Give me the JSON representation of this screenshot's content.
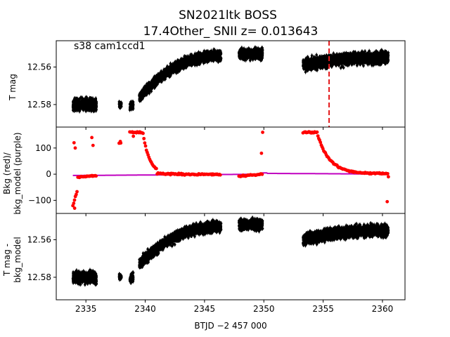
{
  "figure": {
    "title_line1": "SN2021ltk  BOSS",
    "title_line2": "17.4Other_ SNII z= 0.013643",
    "annotation": "s38 cam1ccd1"
  },
  "chart_data": [
    {
      "type": "scatter",
      "panel": "top",
      "ylabel": "T mag",
      "y_inverted": true,
      "ylim": [
        12.592,
        12.546
      ],
      "yticks": [
        12.56,
        12.58
      ],
      "ytick_labels": [
        "12.56",
        "12.58"
      ],
      "xlim": [
        2332.5,
        2361.9
      ],
      "marker_color": "#000000",
      "vline": {
        "x": 2355.5,
        "color": "#e41a1c",
        "style": "dashed"
      },
      "segments": [
        {
          "x": [
            2333.9,
            2335.9
          ],
          "y_start": 12.58,
          "y_end": 12.58,
          "scatter": 0.0045
        },
        {
          "x": [
            2337.8,
            2338.0
          ],
          "y_start": 12.58,
          "y_end": 12.58,
          "scatter": 0.002
        },
        {
          "x": [
            2338.7,
            2339.0
          ],
          "y_start": 12.581,
          "y_end": 12.58,
          "scatter": 0.003
        },
        {
          "x": [
            2339.5,
            2346.4
          ],
          "y_start": 12.576,
          "y_end": 12.554,
          "scatter": 0.004
        },
        {
          "x": [
            2347.9,
            2349.9
          ],
          "y_start": 12.553,
          "y_end": 12.553,
          "scatter": 0.004
        },
        {
          "x": [
            2353.3,
            2360.5
          ],
          "y_start": 12.559,
          "y_end": 12.555,
          "scatter": 0.0045
        }
      ]
    },
    {
      "type": "scatter",
      "panel": "middle",
      "ylabel": "Bkg (red)/ bkg_model (purple)",
      "ylim": [
        -150,
        180
      ],
      "yticks": [
        100,
        0,
        -100
      ],
      "ytick_labels": [
        "100",
        "0",
        "−100"
      ],
      "xlim": [
        2332.5,
        2361.9
      ],
      "series": [
        {
          "name": "Bkg",
          "color": "#ff0000"
        },
        {
          "name": "bkg_model",
          "color": "#c000c0"
        }
      ]
    },
    {
      "type": "scatter",
      "panel": "bottom",
      "ylabel": "T mag - bkg_model",
      "y_inverted": true,
      "ylim": [
        12.592,
        12.546
      ],
      "yticks": [
        12.56,
        12.58
      ],
      "ytick_labels": [
        "12.56",
        "12.58"
      ],
      "xlim": [
        2332.5,
        2361.9
      ],
      "xticks": [
        2335,
        2340,
        2345,
        2350,
        2355,
        2360
      ],
      "xtick_labels": [
        "2335",
        "2340",
        "2345",
        "2350",
        "2355",
        "2360"
      ],
      "xlabel": "BTJD −2 457 000",
      "marker_color": "#000000",
      "segments": [
        {
          "x": [
            2333.9,
            2335.9
          ],
          "y_start": 12.58,
          "y_end": 12.58,
          "scatter": 0.0045
        },
        {
          "x": [
            2337.8,
            2338.0
          ],
          "y_start": 12.58,
          "y_end": 12.58,
          "scatter": 0.002
        },
        {
          "x": [
            2338.7,
            2339.0
          ],
          "y_start": 12.581,
          "y_end": 12.58,
          "scatter": 0.003
        },
        {
          "x": [
            2339.5,
            2346.4
          ],
          "y_start": 12.573,
          "y_end": 12.553,
          "scatter": 0.004
        },
        {
          "x": [
            2347.9,
            2349.9
          ],
          "y_start": 12.552,
          "y_end": 12.552,
          "scatter": 0.004
        },
        {
          "x": [
            2353.3,
            2360.5
          ],
          "y_start": 12.56,
          "y_end": 12.555,
          "scatter": 0.0045
        }
      ]
    }
  ]
}
